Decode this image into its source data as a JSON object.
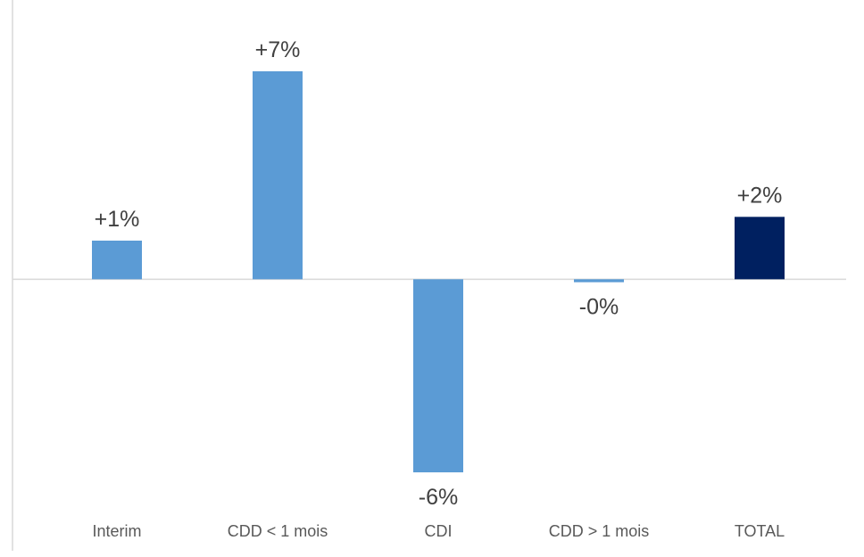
{
  "chart_data": {
    "type": "bar",
    "categories": [
      "Interim",
      "CDD < 1 mois",
      "CDI",
      "CDD > 1 mois",
      "TOTAL"
    ],
    "values": [
      1.3,
      7.0,
      -6.5,
      -0.1,
      2.1
    ],
    "data_labels": [
      "+1%",
      "+7%",
      "-6%",
      "-0%",
      "+2%"
    ],
    "bar_colors": [
      "#5b9bd5",
      "#5b9bd5",
      "#5b9bd5",
      "#5b9bd5",
      "#002060"
    ],
    "axis_color": "#d9d9d9",
    "title": "",
    "xlabel": "",
    "ylabel": "",
    "ylim": [
      -8.6,
      9.4
    ],
    "grid": false,
    "legend": "none"
  }
}
